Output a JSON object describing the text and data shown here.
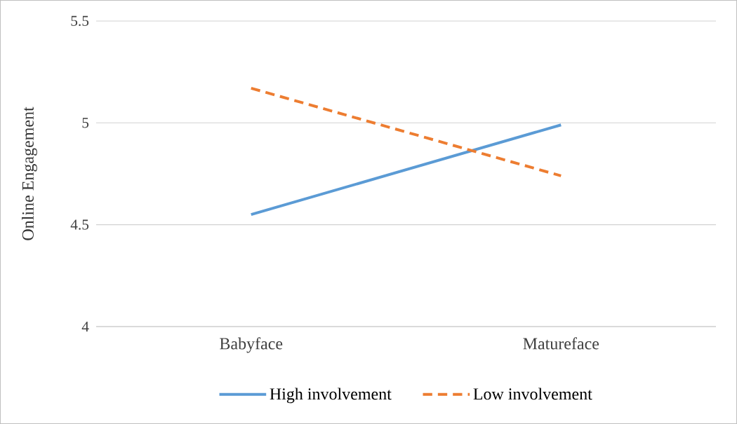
{
  "chart_data": {
    "type": "line",
    "ylabel": "Online Engagement",
    "categories": [
      "Babyface",
      "Matureface"
    ],
    "series": [
      {
        "name": "High involvement",
        "color": "#5b9bd5",
        "line_style": "solid",
        "values": [
          4.55,
          4.99
        ]
      },
      {
        "name": "Low involvement",
        "color": "#ed7d31",
        "line_style": "dashed",
        "values": [
          5.17,
          4.74
        ]
      }
    ],
    "ylim": [
      4,
      5.5
    ],
    "yticks": [
      4,
      4.5,
      5,
      5.5
    ],
    "grid": "y",
    "legend": "bottom",
    "marker": "none"
  }
}
